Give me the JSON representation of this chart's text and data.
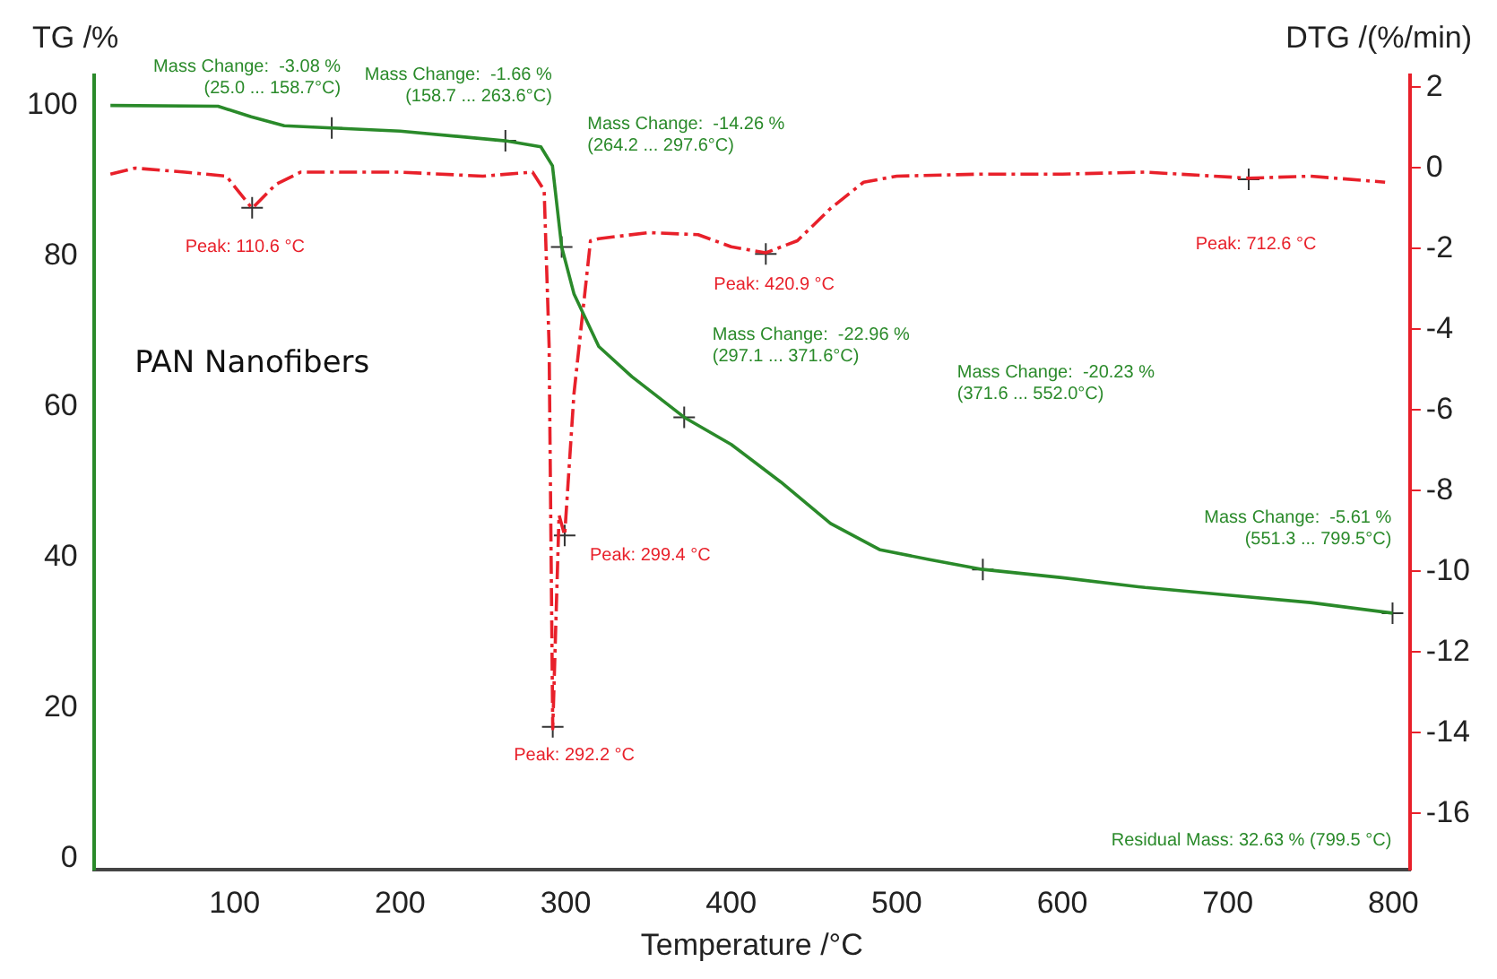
{
  "chart_data": {
    "type": "line",
    "xlabel": "Temperature /°C",
    "ylabel": "TG /%",
    "y2label": "DTG /(%/min)",
    "xlim": [
      15,
      810
    ],
    "xticks": [
      100,
      200,
      300,
      400,
      500,
      600,
      700,
      800
    ],
    "ylim": [
      -1.5,
      104
    ],
    "yticks": [
      0,
      20,
      40,
      60,
      80,
      100
    ],
    "y2lim": [
      -17.4,
      2.3
    ],
    "y2ticks": [
      2,
      0,
      -2,
      -4,
      -6,
      -8,
      -10,
      -12,
      -14,
      -16
    ],
    "grid": false,
    "legend": false,
    "marker": "none",
    "series": [
      {
        "type": "line",
        "color": "#2a8a2a",
        "line_style": "solid",
        "x": [
          25,
          90,
          110,
          130,
          158.7,
          200,
          263.6,
          285,
          292,
          297.6,
          305,
          320,
          340,
          371.6,
          400,
          430,
          460,
          490,
          520,
          552,
          600,
          650,
          700,
          750,
          799.5
        ],
        "values": [
          100,
          99.9,
          98.5,
          97.3,
          97,
          96.6,
          95.3,
          94.5,
          92,
          81.2,
          75,
          68,
          64,
          58.6,
          55,
          50,
          44.5,
          41,
          39.7,
          38.4,
          37.3,
          36,
          35,
          34,
          32.6
        ]
      },
      {
        "type": "line",
        "axis": "y2",
        "color": "#e8202a",
        "line_style": "dashed",
        "x": [
          25,
          40,
          70,
          95,
          110.6,
          125,
          140,
          200,
          250,
          280,
          287,
          290,
          292.2,
          296,
          299.4,
          305,
          315,
          320,
          350,
          380,
          400,
          420.9,
          440,
          460,
          480,
          500,
          550,
          600,
          650,
          712.6,
          750,
          795
        ],
        "values": [
          -0.15,
          0,
          -0.1,
          -0.2,
          -1.0,
          -0.4,
          -0.1,
          -0.1,
          -0.2,
          -0.1,
          -0.55,
          -4.4,
          -13.9,
          -8.6,
          -9.1,
          -5.6,
          -1.8,
          -1.75,
          -1.6,
          -1.65,
          -1.95,
          -2.1,
          -1.8,
          -1.0,
          -0.35,
          -0.2,
          -0.15,
          -0.15,
          -0.1,
          -0.25,
          -0.2,
          -0.35
        ]
      },
      {
        "type": "scatter",
        "marker": "cross",
        "color": "#333333",
        "x": [
          158.7,
          263.6,
          297.6,
          371.6,
          552,
          799.5,
          110.6,
          292.2,
          299.4,
          420.9,
          712.6
        ],
        "values": [
          97,
          95.3,
          81.2,
          58.6,
          38.4,
          32.6,
          86.4,
          17.5,
          42.9,
          80.3,
          90.2
        ]
      }
    ],
    "annotations": [
      {
        "text": "Mass Change:  -3.08 %\n(25.0 ... 158.7°C)",
        "x": 158.7,
        "y": 97
      },
      {
        "text": "Mass Change:  -1.66 %\n(158.7 ... 263.6°C)",
        "x": 263.6,
        "y": 95.3
      },
      "Mass Change:  -14.26 %\n(264.2 ... 297.6°C)",
      "Mass Change:  -22.96 %\n(297.1 ... 371.6°C)",
      "Mass Change:  -20.23 %\n(371.6 ... 552.0°C)",
      "Mass Change:  -5.61 %\n(551.3 ... 799.5°C)",
      {
        "text": "Peak: 110.6 °C",
        "x": 110.6,
        "y": 86.4
      },
      {
        "text": "Peak: 292.2 °C",
        "x": 292.2,
        "y": 17.5
      },
      {
        "text": "Peak: 299.4 °C",
        "x": 299.4,
        "y": 42.9
      },
      {
        "text": "Peak: 420.9 °C",
        "x": 420.9,
        "y": 80.3
      },
      "Peak: 712.6 °C",
      "Residual Mass: 32.63 % (799.5 °C)",
      "PAN Nanofibers"
    ]
  }
}
